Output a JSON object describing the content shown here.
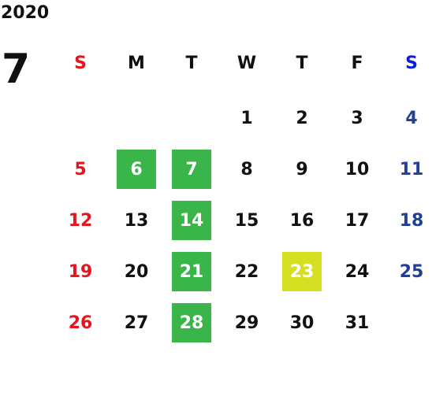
{
  "calendar": {
    "year": "2020",
    "month": "7",
    "weekdays": [
      "S",
      "M",
      "T",
      "W",
      "T",
      "F",
      "S"
    ],
    "weekday_colors": [
      "#e8141b",
      "#111111",
      "#111111",
      "#111111",
      "#111111",
      "#111111",
      "#0a1fd6"
    ],
    "day_colors": [
      "#e8141b",
      "#111111",
      "#111111",
      "#111111",
      "#111111",
      "#111111",
      "#1f3f99"
    ],
    "highlight_text_color": "#ffffff",
    "weeks": [
      [
        null,
        null,
        null,
        1,
        2,
        3,
        4
      ],
      [
        5,
        {
          "day": 6,
          "fill": "#3ab54a"
        },
        {
          "day": 7,
          "fill": "#3ab54a"
        },
        8,
        9,
        10,
        11
      ],
      [
        12,
        13,
        {
          "day": 14,
          "fill": "#3ab54a"
        },
        15,
        16,
        17,
        18
      ],
      [
        19,
        20,
        {
          "day": 21,
          "fill": "#3ab54a"
        },
        22,
        {
          "day": 23,
          "fill": "#d4e021"
        },
        24,
        25
      ],
      [
        26,
        27,
        {
          "day": 28,
          "fill": "#3ab54a"
        },
        29,
        30,
        31,
        null
      ]
    ]
  }
}
